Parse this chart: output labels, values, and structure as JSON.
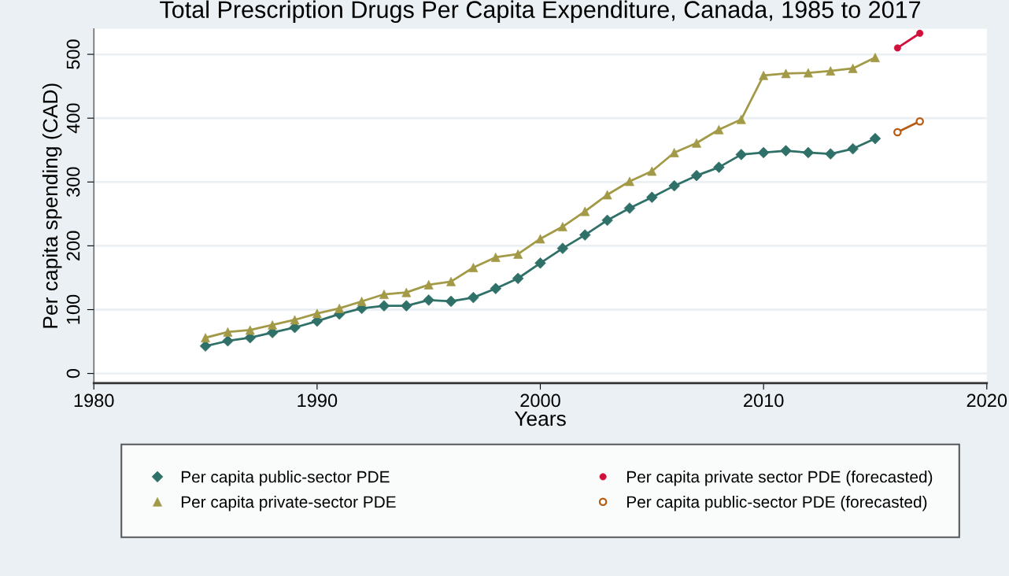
{
  "chart_data": {
    "type": "line",
    "title": "Total Prescription Drugs Per Capita Expenditure, Canada, 1985 to 2017",
    "xlabel": "Years",
    "ylabel": "Per capita spending (CAD)",
    "xlim": [
      1980,
      2020
    ],
    "xticks": [
      1980,
      1990,
      2000,
      2010,
      2020
    ],
    "ylim": [
      -15,
      540
    ],
    "yticks": [
      0,
      100,
      200,
      300,
      400,
      500
    ],
    "grid": "y",
    "legend": "bottom",
    "line_style": "solid",
    "series": [
      {
        "name": "Per capita public-sector PDE",
        "color": "#2f7068",
        "marker": "diamond",
        "x": [
          1985,
          1986,
          1987,
          1988,
          1989,
          1990,
          1991,
          1992,
          1993,
          1994,
          1995,
          1996,
          1997,
          1998,
          1999,
          2000,
          2001,
          2002,
          2003,
          2004,
          2005,
          2006,
          2007,
          2008,
          2009,
          2010,
          2011,
          2012,
          2013,
          2014,
          2015
        ],
        "values": [
          43,
          51,
          56,
          64,
          72,
          82,
          93,
          102,
          106,
          106,
          115,
          113,
          119,
          133,
          149,
          173,
          196,
          217,
          240,
          259,
          276,
          294,
          310,
          323,
          343,
          346,
          349,
          346,
          344,
          352,
          368
        ]
      },
      {
        "name": "Per capita private-sector PDE",
        "color": "#a39a48",
        "marker": "triangle",
        "x": [
          1985,
          1986,
          1987,
          1988,
          1989,
          1990,
          1991,
          1992,
          1993,
          1994,
          1995,
          1996,
          1997,
          1998,
          1999,
          2000,
          2001,
          2002,
          2003,
          2004,
          2005,
          2006,
          2007,
          2008,
          2009,
          2010,
          2011,
          2012,
          2013,
          2014,
          2015
        ],
        "values": [
          56,
          65,
          68,
          76,
          84,
          94,
          102,
          113,
          124,
          127,
          139,
          144,
          166,
          182,
          187,
          211,
          230,
          254,
          280,
          301,
          317,
          346,
          361,
          382,
          398,
          467,
          470,
          471,
          474,
          478,
          495
        ]
      },
      {
        "name": "Per capita private sector PDE (forecasted)",
        "type": "line",
        "color": "#d0103a",
        "marker": "circle",
        "x": [
          2016,
          2017
        ],
        "values": [
          510,
          533
        ]
      },
      {
        "name": "Per capita public-sector PDE (forecasted)",
        "type": "line",
        "color": "#b85a10",
        "marker": "circle_open",
        "x": [
          2016,
          2017
        ],
        "values": [
          378,
          395
        ]
      }
    ]
  }
}
